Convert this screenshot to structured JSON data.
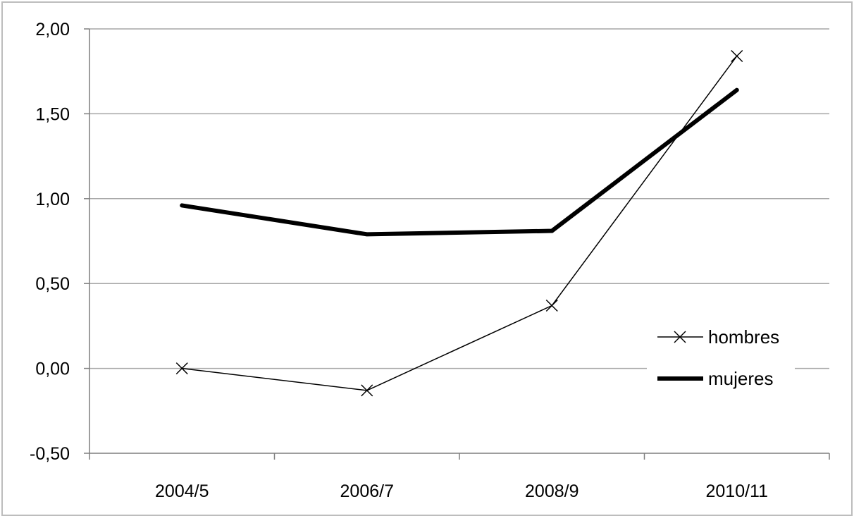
{
  "chart_data": {
    "type": "line",
    "categories": [
      "2004/5",
      "2006/7",
      "2008/9",
      "2010/11"
    ],
    "series": [
      {
        "name": "hombres",
        "values": [
          0.0,
          -0.13,
          0.37,
          1.84
        ],
        "color": "#000000",
        "style": "thin-line-x-markers"
      },
      {
        "name": "mujeres",
        "values": [
          0.96,
          0.79,
          0.81,
          1.64
        ],
        "color": "#000000",
        "style": "thick-line"
      }
    ],
    "ylim": [
      -0.5,
      2.0
    ],
    "yticks": [
      -0.5,
      0.0,
      0.5,
      1.0,
      1.5,
      2.0
    ],
    "ytick_labels": [
      "-0,50",
      "0,00",
      "0,50",
      "1,00",
      "1,50",
      "2,00"
    ],
    "title": "",
    "xlabel": "",
    "ylabel": "",
    "grid": "horizontal",
    "legend_position": "right"
  }
}
